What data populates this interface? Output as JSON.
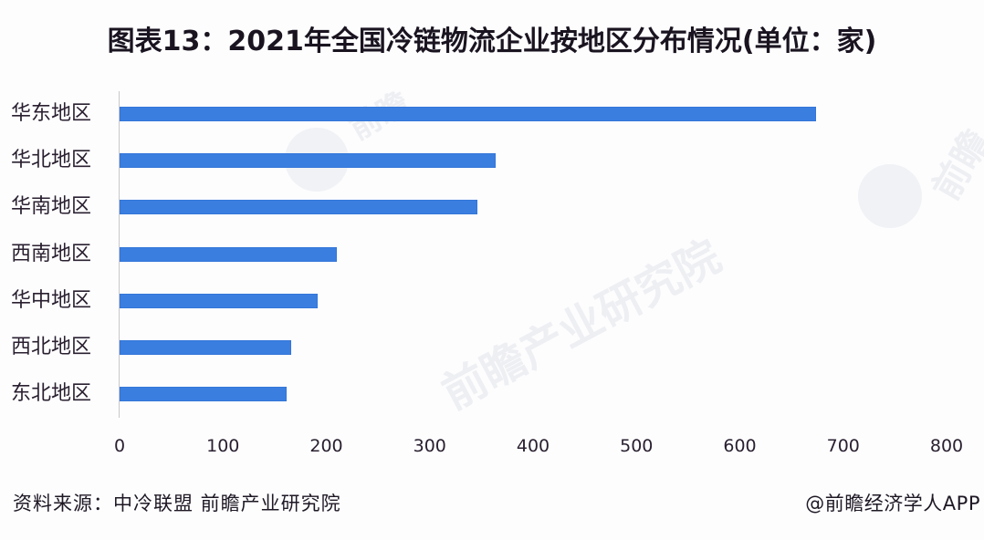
{
  "title": "图表13：2021年全国冷链物流企业按地区分布情况(单位：家)",
  "footer": {
    "source": "资料来源：中冷联盟 前瞻产业研究院",
    "credit": "@前瞻经济学人APP"
  },
  "watermark": {
    "text_1": "前瞻产业研究院",
    "text_2": "前瞻"
  },
  "colors": {
    "bar": "#3a7ee0",
    "axis": "#c8c8cc",
    "text": "#231a2a"
  },
  "chart_data": {
    "type": "bar",
    "orientation": "horizontal",
    "title": "图表13：2021年全国冷链物流企业按地区分布情况(单位：家)",
    "xlabel": "",
    "ylabel": "",
    "unit": "家",
    "categories": [
      "华东地区",
      "华北地区",
      "华南地区",
      "西南地区",
      "华中地区",
      "西北地区",
      "东北地区"
    ],
    "values": [
      674,
      364,
      346,
      210,
      192,
      166,
      162
    ],
    "xlim": [
      0,
      800
    ],
    "xticks": [
      "0",
      "100",
      "200",
      "300",
      "400",
      "500",
      "600",
      "700",
      "800"
    ],
    "grid": false,
    "legend": null
  }
}
